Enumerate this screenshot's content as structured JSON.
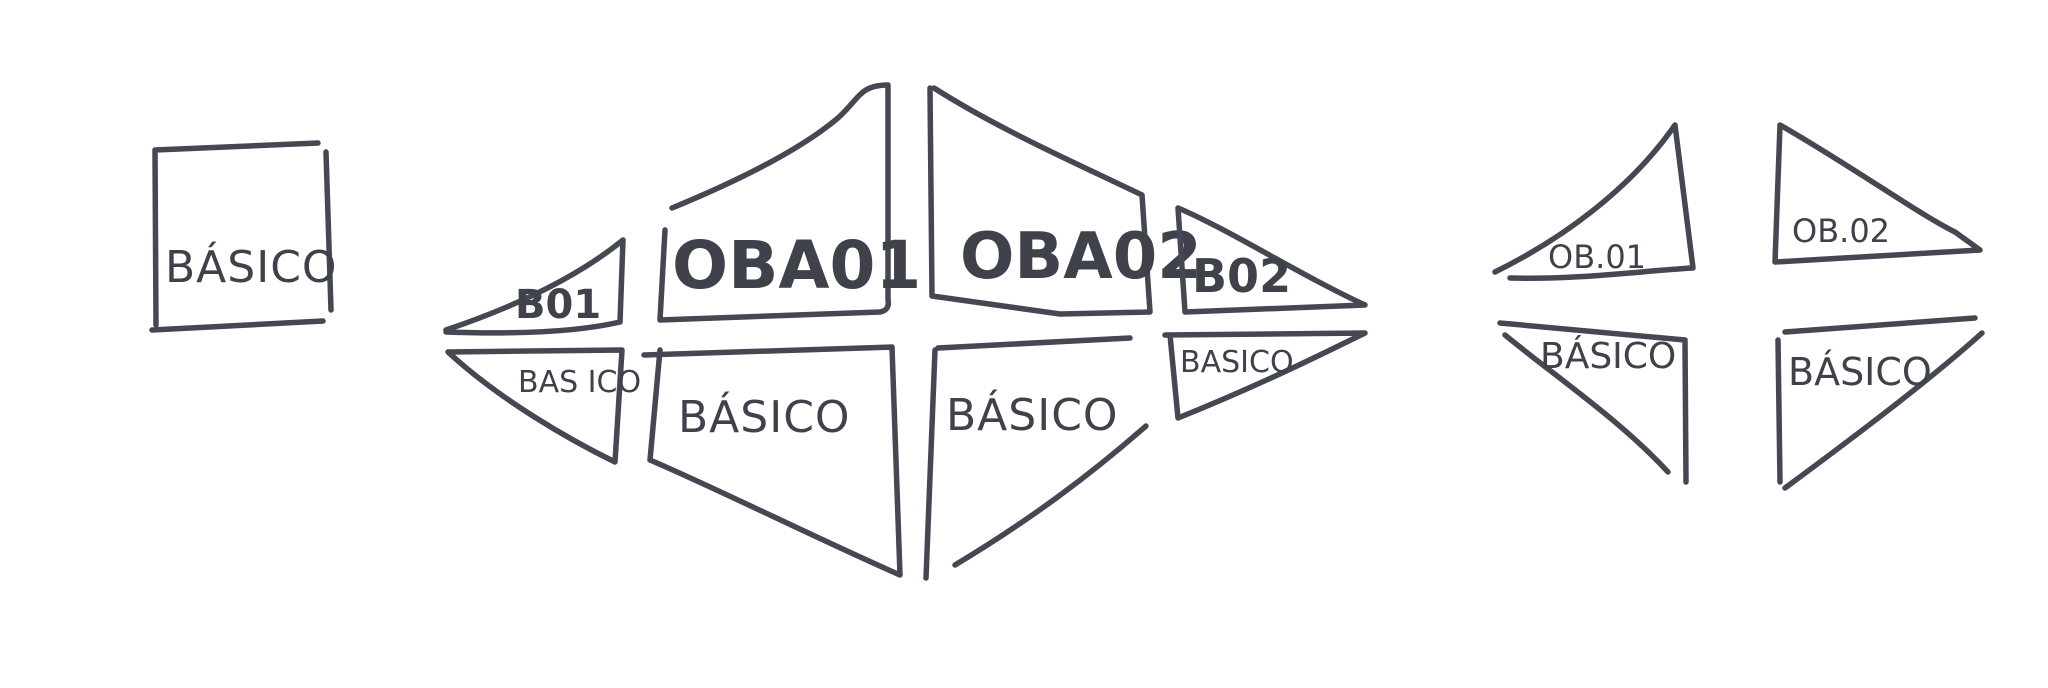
{
  "colors": {
    "background": "#ffffff",
    "ink": "#454852"
  },
  "groups": [
    {
      "id": "single",
      "panels": [
        {
          "key": "p1",
          "label": "BÁSICO"
        }
      ]
    },
    {
      "id": "fan",
      "panels": [
        {
          "key": "p2",
          "label": "B01"
        },
        {
          "key": "p3",
          "label": "OBA01"
        },
        {
          "key": "p4",
          "label": "OBA02"
        },
        {
          "key": "p5",
          "label": "B02"
        },
        {
          "key": "p6",
          "label": "BAS ICO"
        },
        {
          "key": "p7",
          "label": "BÁSICO"
        },
        {
          "key": "p8",
          "label": "BÁSICO"
        },
        {
          "key": "p9",
          "label": "BASICO"
        }
      ]
    },
    {
      "id": "quad",
      "panels": [
        {
          "key": "p10",
          "label": "OB.01"
        },
        {
          "key": "p11",
          "label": "OB.02"
        },
        {
          "key": "p12",
          "label": "BÁSICO"
        },
        {
          "key": "p13",
          "label": "BÁSICO"
        }
      ]
    }
  ]
}
